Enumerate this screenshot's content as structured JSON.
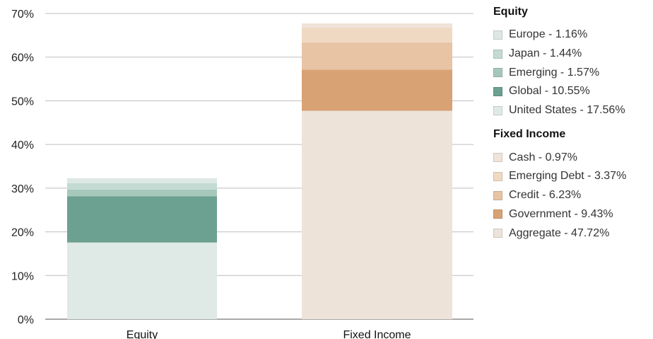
{
  "chart_data": {
    "type": "bar",
    "stacked": true,
    "categories": [
      "Equity",
      "Fixed Income"
    ],
    "ylim": [
      0,
      70
    ],
    "yticks": [
      0,
      10,
      20,
      30,
      40,
      50,
      60,
      70
    ],
    "ytick_suffix": "%",
    "grid": true,
    "legend_position": "right",
    "series": [
      {
        "name": "Europe - 1.16%",
        "group": "Equity",
        "category": "Equity",
        "value": 1.16,
        "color": "#dde8e4"
      },
      {
        "name": "Japan - 1.44%",
        "group": "Equity",
        "category": "Equity",
        "value": 1.44,
        "color": "#c3dbd3"
      },
      {
        "name": "Emerging - 1.57%",
        "group": "Equity",
        "category": "Equity",
        "value": 1.57,
        "color": "#a6c8bb"
      },
      {
        "name": "Global - 10.55%",
        "group": "Equity",
        "category": "Equity",
        "value": 10.55,
        "color": "#6ca090"
      },
      {
        "name": "United States - 17.56%",
        "group": "Equity",
        "category": "Equity",
        "value": 17.56,
        "color": "#dfe9e5"
      },
      {
        "name": "Cash - 0.97%",
        "group": "Fixed Income",
        "category": "Fixed Income",
        "value": 0.97,
        "color": "#efe3da"
      },
      {
        "name": "Emerging Debt - 3.37%",
        "group": "Fixed Income",
        "category": "Fixed Income",
        "value": 3.37,
        "color": "#f0d9c3"
      },
      {
        "name": "Credit - 6.23%",
        "group": "Fixed Income",
        "category": "Fixed Income",
        "value": 6.23,
        "color": "#e8c3a4"
      },
      {
        "name": "Government - 9.43%",
        "group": "Fixed Income",
        "category": "Fixed Income",
        "value": 9.43,
        "color": "#d9a274"
      },
      {
        "name": "Aggregate - 47.72%",
        "group": "Fixed Income",
        "category": "Fixed Income",
        "value": 47.72,
        "color": "#ede3d9"
      }
    ],
    "legend_groups": [
      {
        "title": "Equity",
        "items": [
          "Europe - 1.16%",
          "Japan - 1.44%",
          "Emerging - 1.57%",
          "Global - 10.55%",
          "United States - 17.56%"
        ]
      },
      {
        "title": "Fixed Income",
        "items": [
          "Cash - 0.97%",
          "Emerging Debt - 3.37%",
          "Credit - 6.23%",
          "Government - 9.43%",
          "Aggregate - 47.72%"
        ]
      }
    ]
  }
}
